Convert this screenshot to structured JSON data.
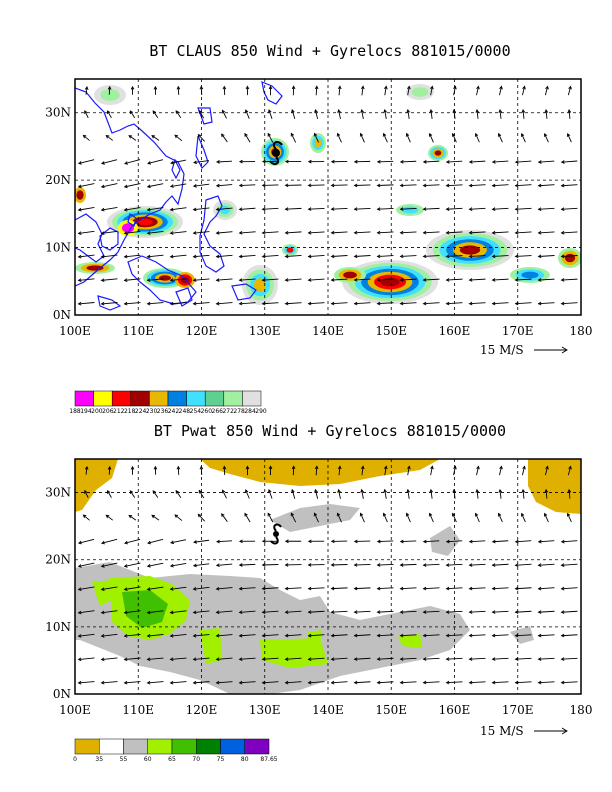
{
  "panels": [
    {
      "title": "BT CLAUS 850 Wind + Gyrelocs 881015/0000",
      "lon_labels": [
        "100E",
        "110E",
        "120E",
        "130E",
        "140E",
        "150E",
        "160E",
        "170E",
        "180"
      ],
      "lat_labels": [
        "0N",
        "10N",
        "20N",
        "30N"
      ],
      "vector_scale_label": "15 M/S",
      "colorbar": {
        "colors": [
          "#ff00ff",
          "#ffff00",
          "#ff0000",
          "#a00000",
          "#e8b800",
          "#0080e0",
          "#40e0ff",
          "#60d090",
          "#a0f0a0",
          "#e0e0e0"
        ],
        "labels": [
          "188",
          "194",
          "200",
          "206",
          "212",
          "218",
          "224",
          "230",
          "236",
          "242",
          "248",
          "254",
          "260",
          "266",
          "272",
          "278",
          "284",
          "290"
        ]
      },
      "gyre_icon": "cyclone-symbol-icon"
    },
    {
      "title": "BT Pwat 850 Wind + Gyrelocs 881015/0000",
      "lon_labels": [
        "100E",
        "110E",
        "120E",
        "130E",
        "140E",
        "150E",
        "160E",
        "170E",
        "180"
      ],
      "lat_labels": [
        "0N",
        "10N",
        "20N",
        "30N"
      ],
      "vector_scale_label": "15 M/S",
      "colorbar": {
        "colors": [
          "#e0b000",
          "#ffffff",
          "#c0c0c0",
          "#a0f000",
          "#40c000",
          "#008000",
          "#0060e0",
          "#8000c0"
        ],
        "labels": [
          "0",
          "35",
          "55",
          "60",
          "65",
          "70",
          "75",
          "80",
          "87.65"
        ]
      },
      "gyre_icon": "cyclone-symbol-icon"
    }
  ]
}
